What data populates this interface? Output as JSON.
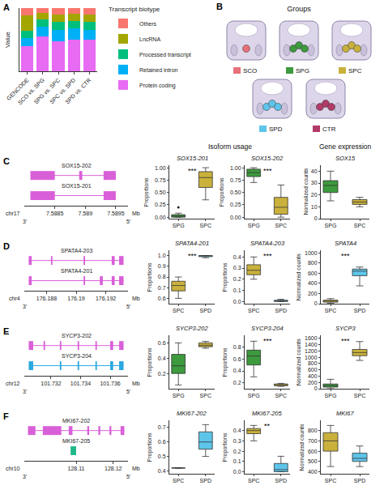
{
  "chart_data": [
    {
      "panel": "A",
      "type": "bar",
      "stacked": true,
      "y_label": "Value",
      "categories": [
        "GENCODE",
        "SCO vs. SPG",
        "SPG vs. SPC",
        "SPC vs. SPD",
        "SPD vs. CTR"
      ],
      "series": [
        {
          "name": "Protein coding",
          "color": "#E76BF3",
          "values": [
            0.4,
            0.55,
            0.48,
            0.5,
            0.5
          ]
        },
        {
          "name": "Retained intron",
          "color": "#00B0F6",
          "values": [
            0.13,
            0.15,
            0.17,
            0.18,
            0.16
          ]
        },
        {
          "name": "Processed transcript",
          "color": "#00BF7D",
          "values": [
            0.11,
            0.12,
            0.13,
            0.12,
            0.12
          ]
        },
        {
          "name": "LncRNA",
          "color": "#A3A500",
          "values": [
            0.24,
            0.1,
            0.12,
            0.11,
            0.12
          ]
        },
        {
          "name": "Others",
          "color": "#F8766D",
          "values": [
            0.12,
            0.08,
            0.1,
            0.09,
            0.1
          ]
        }
      ],
      "ylim": [
        0,
        1
      ],
      "tick_labels": "x",
      "grid": false,
      "legend": "right",
      "legend_title": "Transcript biotype"
    },
    {
      "panel": "C",
      "type": "gene_model",
      "chromosome": "chr17",
      "unit": "Mb",
      "left_end": "3'",
      "right_end": "5'",
      "xlim": [
        7.588,
        7.5897
      ],
      "xticks": [
        7.5885,
        7.589,
        7.5895
      ],
      "isoforms": [
        {
          "name": "SOX15-202",
          "color": "#D95FD9",
          "exons": [
            [
              7.5881,
              7.5885
            ],
            [
              7.5889,
              7.58895
            ],
            [
              7.5893,
              7.5895
            ]
          ]
        },
        {
          "name": "SOX15-201",
          "color": "#D95FD9",
          "exons": [
            [
              7.5881,
              7.5885
            ],
            [
              7.5893,
              7.5895
            ]
          ]
        }
      ]
    },
    {
      "type": "box",
      "title": "SOX15-201",
      "y_label": "Proportions",
      "categories": [
        "SPG",
        "SPC"
      ],
      "colors": [
        "#3D9A3D",
        "#C9B13C"
      ],
      "q1": [
        0,
        0.6
      ],
      "median": [
        0.02,
        0.8
      ],
      "q3": [
        0.05,
        0.92
      ],
      "lower": [
        0,
        0.35
      ],
      "upper": [
        0.08,
        1.0
      ],
      "outliers": [
        [
          0.2
        ],
        []
      ],
      "ylim": [
        -0.03,
        1.05
      ],
      "yticks": [
        {
          "value": 0,
          "label": "0.00"
        },
        0.25,
        {
          "value": 0.5,
          "label": "0.50"
        },
        0.75,
        {
          "value": 1,
          "label": "1.00"
        }
      ],
      "significance": "***"
    },
    {
      "type": "box",
      "title": "SOX15-202",
      "y_label": "Proportions",
      "categories": [
        "SPG",
        "SPC"
      ],
      "colors": [
        "#3D9A3D",
        "#C9B13C"
      ],
      "q1": [
        0.82,
        0.06
      ],
      "median": [
        0.9,
        0.2
      ],
      "q3": [
        0.97,
        0.4
      ],
      "lower": [
        0.7,
        0
      ],
      "upper": [
        1.0,
        0.65
      ],
      "outliers": [
        [],
        []
      ],
      "ylim": [
        -0.03,
        1.05
      ],
      "yticks": [
        {
          "value": 0,
          "label": "0.00"
        },
        0.25,
        {
          "value": 0.5,
          "label": "0.50"
        },
        0.75,
        {
          "value": 1,
          "label": "1.00"
        }
      ],
      "significance": "***"
    },
    {
      "type": "box",
      "title": "SOX15",
      "y_label": "Normalized counts",
      "categories": [
        "SPG",
        "SPC"
      ],
      "colors": [
        "#3D9A3D",
        "#C9B13C"
      ],
      "q1": [
        22,
        12
      ],
      "median": [
        28,
        14
      ],
      "q3": [
        32,
        16
      ],
      "lower": [
        15,
        10
      ],
      "upper": [
        40,
        18
      ],
      "outliers": [
        [],
        []
      ],
      "ylim": [
        0,
        45
      ],
      "yticks": [
        0,
        10,
        20,
        30,
        40
      ]
    },
    {
      "panel": "D",
      "type": "gene_model",
      "chromosome": "chr4",
      "unit": "Mb",
      "left_end": "3'",
      "right_end": "5'",
      "xlim": [
        176.1865,
        176.1935
      ],
      "xticks": [
        176.188,
        176.19,
        176.192
      ],
      "isoforms": [
        {
          "name": "SPATA4-203",
          "color": "#D95FD9",
          "exons": [
            [
              176.1868,
              176.187
            ],
            [
              176.1883,
              176.1884
            ],
            [
              176.1905,
              176.1906
            ],
            [
              176.1924,
              176.1926
            ],
            [
              176.1929,
              176.1932
            ]
          ]
        },
        {
          "name": "SPATA4-201",
          "color": "#D95FD9",
          "exons": [
            [
              176.1868,
              176.187
            ],
            [
              176.1905,
              176.1906
            ],
            [
              176.1916,
              176.1918
            ],
            [
              176.1924,
              176.1926
            ],
            [
              176.1929,
              176.1932
            ]
          ]
        }
      ]
    },
    {
      "type": "box",
      "title": "SPATA4-201",
      "y_label": "Proportions",
      "categories": [
        "SPC",
        "SPD"
      ],
      "colors": [
        "#C9B13C",
        "#5EC4EA"
      ],
      "q1": [
        0.67,
        0.99
      ],
      "median": [
        0.72,
        1.0
      ],
      "q3": [
        0.76,
        1.0
      ],
      "lower": [
        0.6,
        0.98
      ],
      "upper": [
        0.8,
        1.0
      ],
      "outliers": [
        [],
        []
      ],
      "ylim": [
        0.55,
        1.05
      ],
      "yticks": [
        0.6,
        0.7,
        0.8,
        0.9,
        {
          "value": 1,
          "label": "1.0"
        }
      ],
      "significance": "***"
    },
    {
      "type": "box",
      "title": "SPATA4-203",
      "y_label": "Proportions",
      "categories": [
        "SPC",
        "SPD"
      ],
      "colors": [
        "#C9B13C",
        "#5EC4EA"
      ],
      "q1": [
        0.24,
        0.0
      ],
      "median": [
        0.28,
        0.01
      ],
      "q3": [
        0.33,
        0.01
      ],
      "lower": [
        0.2,
        0
      ],
      "upper": [
        0.4,
        0.02
      ],
      "outliers": [
        [],
        []
      ],
      "ylim": [
        -0.02,
        0.46
      ],
      "yticks": [
        {
          "value": 0,
          "label": "0.0"
        },
        0.1,
        0.2,
        0.3,
        0.4
      ],
      "significance": "***"
    },
    {
      "type": "box",
      "title": "SPATA4",
      "y_label": "Normalized counts",
      "categories": [
        "SPC",
        "SPD"
      ],
      "colors": [
        "#C9B13C",
        "#5EC4EA"
      ],
      "q1": [
        30,
        550
      ],
      "median": [
        50,
        640
      ],
      "q3": [
        70,
        680
      ],
      "lower": [
        10,
        350
      ],
      "upper": [
        100,
        720
      ],
      "outliers": [
        [],
        []
      ],
      "ylim": [
        0,
        1050
      ],
      "yticks": [
        0,
        200,
        400,
        600,
        800,
        1000
      ],
      "significance": "***"
    },
    {
      "panel": "E",
      "type": "gene_model",
      "chromosome": "chr12",
      "unit": "Mb",
      "left_end": "3'",
      "right_end": "5'",
      "xlim": [
        101.7302,
        101.7372
      ],
      "xticks": [
        101.732,
        101.734,
        101.736
      ],
      "isoforms": [
        {
          "name": "SYCP3-202",
          "color": "#D95FD9",
          "exons": [
            [
              101.7305,
              101.7308
            ],
            [
              101.7315,
              101.7316
            ],
            [
              101.7326,
              101.7327
            ],
            [
              101.7338,
              101.7339
            ],
            [
              101.735,
              101.7351
            ],
            [
              101.736,
              101.7362
            ],
            [
              101.7366,
              101.7369
            ]
          ]
        },
        {
          "name": "SYCP3-204",
          "color": "#2AA8E0",
          "exons": [
            [
              101.7305,
              101.7308
            ],
            [
              101.7326,
              101.7327
            ],
            [
              101.7338,
              101.7339
            ],
            [
              101.735,
              101.7351
            ],
            [
              101.736,
              101.7362
            ],
            [
              101.7366,
              101.7369
            ]
          ]
        }
      ]
    },
    {
      "type": "box",
      "title": "SYCP3-202",
      "y_label": "Proportions",
      "categories": [
        "SPG",
        "SPC"
      ],
      "colors": [
        "#3D9A3D",
        "#C9B13C"
      ],
      "q1": [
        0.2,
        0.55
      ],
      "median": [
        0.3,
        0.57
      ],
      "q3": [
        0.45,
        0.6
      ],
      "lower": [
        0.05,
        0.53
      ],
      "upper": [
        0.6,
        0.62
      ],
      "outliers": [
        [],
        []
      ],
      "ylim": [
        0,
        0.7
      ],
      "yticks": [
        0.2,
        0.4,
        0.6
      ]
    },
    {
      "type": "box",
      "title": "SYCP3-204",
      "y_label": "Proportions",
      "categories": [
        "SPG",
        "SPC"
      ],
      "colors": [
        "#3D9A3D",
        "#C9B13C"
      ],
      "q1": [
        0.5,
        0.15
      ],
      "median": [
        0.65,
        0.17
      ],
      "q3": [
        0.75,
        0.18
      ],
      "lower": [
        0.3,
        0.14
      ],
      "upper": [
        0.9,
        0.19
      ],
      "outliers": [
        [],
        []
      ],
      "ylim": [
        0.1,
        1.0
      ],
      "yticks": [
        0.2,
        0.4,
        0.6,
        0.8
      ],
      "significance": "***"
    },
    {
      "type": "box",
      "title": "SYCP3",
      "y_label": "Normalized counts",
      "categories": [
        "SPG",
        "SPC"
      ],
      "colors": [
        "#3D9A3D",
        "#C9B13C"
      ],
      "q1": [
        50,
        1050
      ],
      "median": [
        100,
        1150
      ],
      "q3": [
        150,
        1250
      ],
      "lower": [
        0,
        900
      ],
      "upper": [
        300,
        1500
      ],
      "outliers": [
        [],
        []
      ],
      "ylim": [
        0,
        1700
      ],
      "yticks": [
        0,
        200,
        400,
        600,
        800,
        1000,
        1200,
        1400,
        1600
      ],
      "significance": "***"
    },
    {
      "panel": "F",
      "type": "gene_model",
      "chromosome": "chr10",
      "unit": "Mb",
      "left_end": "3'",
      "right_end": "5'",
      "xlim": [
        128.096,
        128.124
      ],
      "xticks": [
        128.11,
        128.12
      ],
      "isoforms": [
        {
          "name": "MKI67-202",
          "color": "#D95FD9",
          "exons": [
            [
              128.097,
              128.099
            ],
            [
              128.101,
              128.106
            ],
            [
              128.108,
              128.109
            ],
            [
              128.113,
              128.1135
            ],
            [
              128.116,
              128.1165
            ],
            [
              128.119,
              128.1195
            ],
            [
              128.122,
              128.123
            ]
          ]
        },
        {
          "name": "MKI67-205",
          "color": "#22B88A",
          "exons": [
            [
              128.1085,
              128.11
            ]
          ]
        }
      ]
    },
    {
      "type": "box",
      "title": "MKI67-202",
      "y_label": "Proportions",
      "categories": [
        "SPC",
        "SPD"
      ],
      "colors": [
        "#C9B13C",
        "#5EC4EA"
      ],
      "q1": [
        0.42,
        0.55
      ],
      "median": [
        0.42,
        0.6
      ],
      "q3": [
        0.42,
        0.67
      ],
      "lower": [
        0.42,
        0.5
      ],
      "upper": [
        0.42,
        0.72
      ],
      "outliers": [
        [],
        []
      ],
      "ylim": [
        0.38,
        0.75
      ],
      "yticks": [
        0.4,
        0.5,
        0.6,
        0.7
      ]
    },
    {
      "type": "box",
      "title": "MKI67-205",
      "y_label": "Proportions",
      "categories": [
        "SPC",
        "SPD"
      ],
      "colors": [
        "#C9B13C",
        "#5EC4EA"
      ],
      "q1": [
        0.37,
        0.0
      ],
      "median": [
        0.4,
        0.02
      ],
      "q3": [
        0.42,
        0.08
      ],
      "lower": [
        0.3,
        0
      ],
      "upper": [
        0.45,
        0.15
      ],
      "outliers": [
        [],
        []
      ],
      "ylim": [
        -0.02,
        0.5
      ],
      "yticks": [
        {
          "value": 0,
          "label": "0.0"
        },
        0.1,
        0.2,
        0.3,
        0.4
      ],
      "significance": "**"
    },
    {
      "type": "box",
      "title": "MKI67",
      "y_label": "Normalized counts",
      "categories": [
        "SPC",
        "SPD"
      ],
      "colors": [
        "#C9B13C",
        "#5EC4EA"
      ],
      "q1": [
        600,
        500
      ],
      "median": [
        700,
        530
      ],
      "q3": [
        780,
        580
      ],
      "lower": [
        450,
        450
      ],
      "upper": [
        850,
        650
      ],
      "outliers": [
        [],
        []
      ],
      "ylim": [
        380,
        900
      ],
      "yticks": [
        400,
        500,
        600,
        700,
        800
      ]
    }
  ],
  "panel_B": {
    "panel": "B",
    "title": "Groups",
    "items": [
      {
        "label": "SCO",
        "color": "#E8707A"
      },
      {
        "label": "SPG",
        "color": "#3D9A3D"
      },
      {
        "label": "SPC",
        "color": "#C9B13C"
      },
      {
        "label": "SPD",
        "color": "#5EC4EA"
      },
      {
        "label": "CTR",
        "color": "#B23A68"
      }
    ]
  },
  "headers": {
    "isoform_usage": "Isoform usage",
    "gene_expression": "Gene expression"
  }
}
